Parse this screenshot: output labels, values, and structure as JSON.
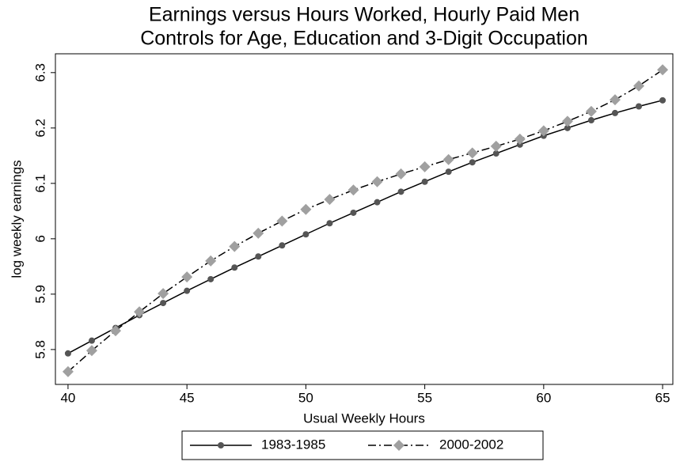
{
  "chart_data": {
    "type": "line",
    "title": "Earnings versus Hours Worked, Hourly Paid Men",
    "subtitle": "Controls for Age, Education and 3-Digit Occupation",
    "xlabel": "Usual Weekly Hours",
    "ylabel": "log weekly earnings",
    "x": [
      40,
      41,
      42,
      43,
      44,
      45,
      46,
      47,
      48,
      49,
      50,
      51,
      52,
      53,
      54,
      55,
      56,
      57,
      58,
      59,
      60,
      61,
      62,
      63,
      64,
      65
    ],
    "series": [
      {
        "name": "1983-1985",
        "color": "#555555",
        "line_color": "#000000",
        "linestyle": "solid",
        "marker": "circle",
        "values": [
          5.793,
          5.816,
          5.839,
          5.862,
          5.884,
          5.906,
          5.927,
          5.948,
          5.968,
          5.988,
          6.008,
          6.028,
          6.047,
          6.066,
          6.085,
          6.103,
          6.121,
          6.138,
          6.154,
          6.17,
          6.186,
          6.2,
          6.214,
          6.227,
          6.239,
          6.25
        ]
      },
      {
        "name": "2000-2002",
        "color": "#a0a0a0",
        "line_color": "#000000",
        "linestyle": "dashdot",
        "marker": "diamond",
        "values": [
          5.76,
          5.798,
          5.834,
          5.868,
          5.901,
          5.931,
          5.96,
          5.986,
          6.01,
          6.032,
          6.053,
          6.071,
          6.088,
          6.103,
          6.117,
          6.13,
          6.143,
          6.155,
          6.167,
          6.18,
          6.195,
          6.212,
          6.23,
          6.251,
          6.276,
          6.305
        ]
      }
    ],
    "xlim": [
      39.47,
      65.43
    ],
    "xticks": [
      40,
      45,
      50,
      55,
      60,
      65
    ],
    "ylim": [
      5.737,
      6.334
    ],
    "yticks": [
      5.8,
      5.9,
      6,
      6.1,
      6.2,
      6.3
    ],
    "grid": false,
    "legend": "bottom"
  }
}
